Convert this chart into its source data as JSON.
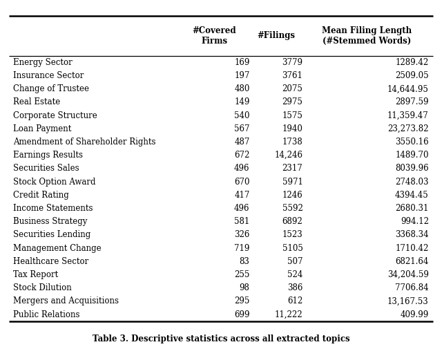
{
  "col_headers": [
    "#Covered\nFirms",
    "#Filings",
    "Mean Filing Length\n(#Stemmed Words)"
  ],
  "rows": [
    [
      "Energy Sector",
      "169",
      "3779",
      "1289.42"
    ],
    [
      "Insurance Sector",
      "197",
      "3761",
      "2509.05"
    ],
    [
      "Change of Trustee",
      "480",
      "2075",
      "14,644.95"
    ],
    [
      "Real Estate",
      "149",
      "2975",
      "2897.59"
    ],
    [
      "Corporate Structure",
      "540",
      "1575",
      "11,359.47"
    ],
    [
      "Loan Payment",
      "567",
      "1940",
      "23,273.82"
    ],
    [
      "Amendment of Shareholder Rights",
      "487",
      "1738",
      "3550.16"
    ],
    [
      "Earnings Results",
      "672",
      "14,246",
      "1489.70"
    ],
    [
      "Securities Sales",
      "496",
      "2317",
      "8039.96"
    ],
    [
      "Stock Option Award",
      "670",
      "5971",
      "2748.03"
    ],
    [
      "Credit Rating",
      "417",
      "1246",
      "4394.45"
    ],
    [
      "Income Statements",
      "496",
      "5592",
      "2680.31"
    ],
    [
      "Business Strategy",
      "581",
      "6892",
      "994.12"
    ],
    [
      "Securities Lending",
      "326",
      "1523",
      "3368.34"
    ],
    [
      "Management Change",
      "719",
      "5105",
      "1710.42"
    ],
    [
      "Healthcare Sector",
      "83",
      "507",
      "6821.64"
    ],
    [
      "Tax Report",
      "255",
      "524",
      "34,204.59"
    ],
    [
      "Stock Dilution",
      "98",
      "386",
      "7706.84"
    ],
    [
      "Mergers and Acquisitions",
      "295",
      "612",
      "13,167.53"
    ],
    [
      "Public Relations",
      "699",
      "11,222",
      "409.99"
    ]
  ],
  "caption": "Table 3. Descriptive statistics across all extracted topics",
  "bg_color": "#ffffff",
  "text_color": "#000000",
  "header_fontsize": 8.5,
  "body_fontsize": 8.5,
  "caption_fontsize": 8.5
}
